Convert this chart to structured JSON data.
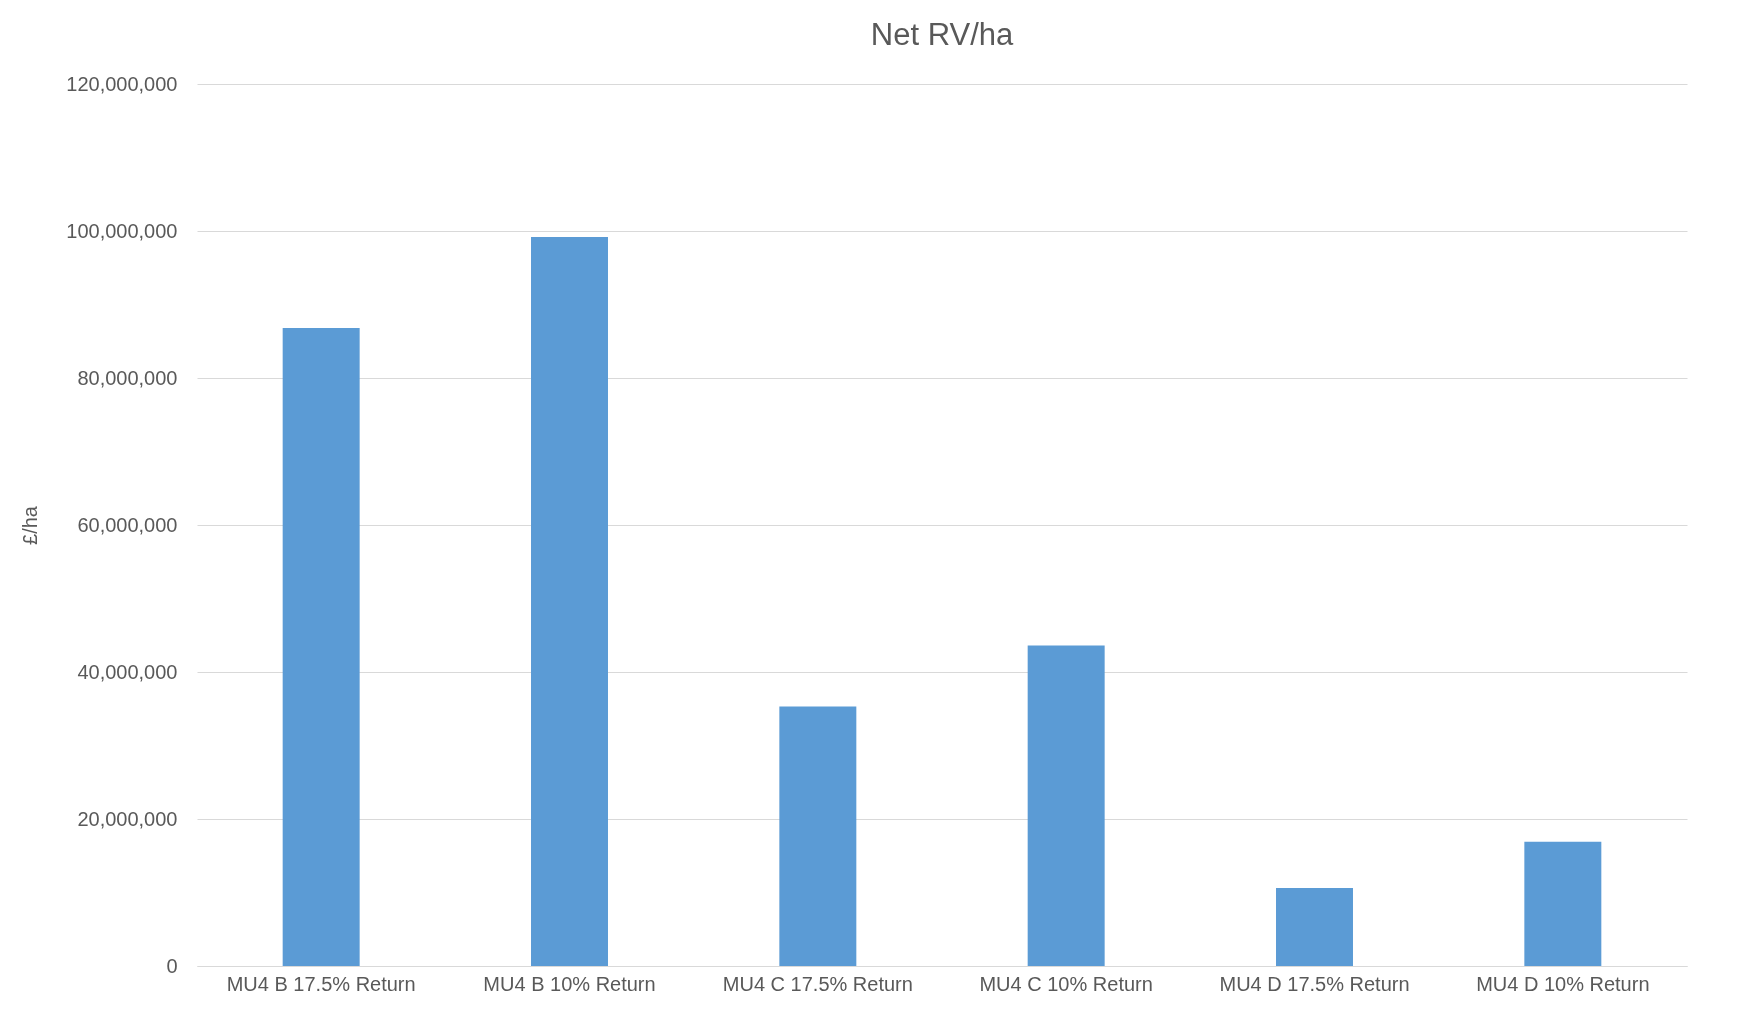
{
  "chart_data": {
    "type": "bar",
    "title": "Net RV/ha",
    "ylabel": "£/ha",
    "categories": [
      "MU4 B 17.5% Return",
      "MU4 B 10% Return",
      "MU4 C 17.5% Return",
      "MU4 C 10% Return",
      "MU4 D 17.5% Return",
      "MU4 D 10% Return"
    ],
    "values": [
      86800000,
      99200000,
      35300000,
      43600000,
      10600000,
      16900000
    ],
    "color": "#5b9bd5",
    "ylim": [
      0,
      120000000
    ],
    "yticks": [
      0,
      {
        "value": 20000000,
        "label": "20,000,000"
      },
      {
        "value": 40000000,
        "label": "40,000,000"
      },
      {
        "value": 60000000,
        "label": "60,000,000"
      },
      {
        "value": 80000000,
        "label": "80,000,000"
      },
      {
        "value": 100000000,
        "label": "100,000,000"
      },
      {
        "value": 120000000,
        "label": "120,000,000"
      }
    ],
    "grid": "y"
  }
}
